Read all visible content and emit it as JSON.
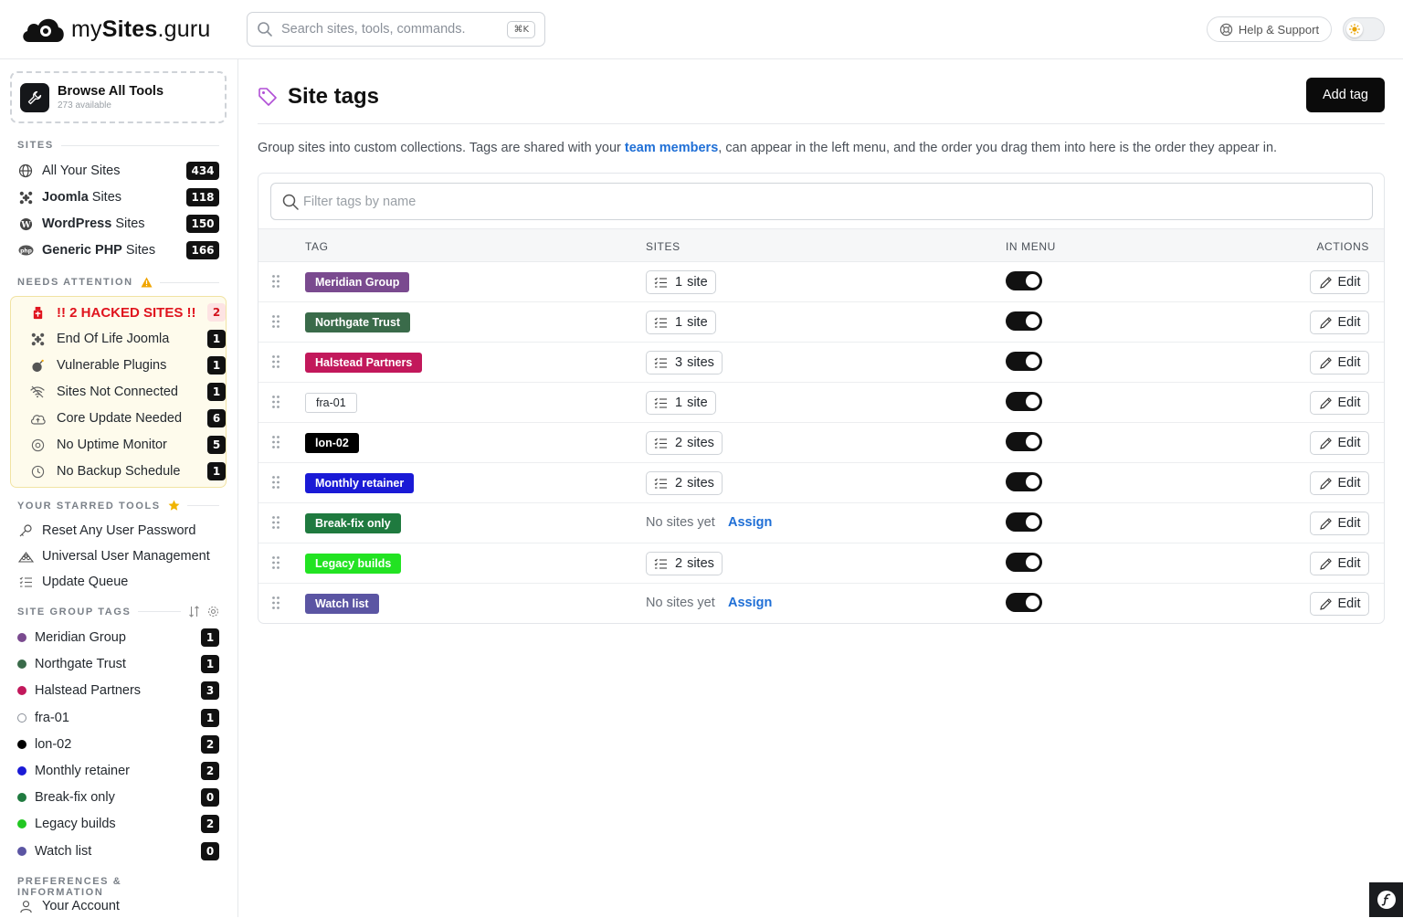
{
  "header": {
    "logo_prefix": "my",
    "logo_bold": "Sites",
    "logo_suffix": ".guru",
    "search_placeholder": "Search sites, tools, commands.",
    "search_shortcut": "⌘K",
    "help_label": "Help & Support"
  },
  "sidebar": {
    "browse": {
      "title": "Browse All Tools",
      "subtitle": "273 available"
    },
    "sites_title": "SITES",
    "sites": [
      {
        "bold": "",
        "label": "All Your Sites",
        "count": "434",
        "icon": "globe-icon"
      },
      {
        "bold": "Joomla",
        "label": " Sites",
        "count": "118",
        "icon": "joomla-icon"
      },
      {
        "bold": "WordPress",
        "label": " Sites",
        "count": "150",
        "icon": "wordpress-icon"
      },
      {
        "bold": "Generic PHP",
        "label": " Sites",
        "count": "166",
        "icon": "php-icon"
      }
    ],
    "attention_title": "NEEDS ATTENTION",
    "attention": [
      {
        "label": "!! 2 HACKED SITES !!",
        "count": "2"
      },
      {
        "label": "End Of Life Joomla",
        "count": "1"
      },
      {
        "label": "Vulnerable Plugins",
        "count": "1"
      },
      {
        "label": "Sites Not Connected",
        "count": "1"
      },
      {
        "label": "Core Update Needed",
        "count": "6"
      },
      {
        "label": "No Uptime Monitor",
        "count": "5"
      },
      {
        "label": "No Backup Schedule",
        "count": "1"
      }
    ],
    "starred_title": "YOUR STARRED TOOLS",
    "starred": [
      {
        "label": "Reset Any User Password"
      },
      {
        "label": "Universal User Management"
      },
      {
        "label": "Update Queue"
      }
    ],
    "tags_title": "SITE GROUP TAGS",
    "tags": [
      {
        "label": "Meridian Group",
        "count": "1",
        "color": "#7a4a8f"
      },
      {
        "label": "Northgate Trust",
        "count": "1",
        "color": "#3a6b4a"
      },
      {
        "label": "Halstead Partners",
        "count": "3",
        "color": "#c2185b"
      },
      {
        "label": "fra-01",
        "count": "1",
        "color": "#ffffff"
      },
      {
        "label": "lon-02",
        "count": "2",
        "color": "#000000"
      },
      {
        "label": "Monthly retainer",
        "count": "2",
        "color": "#1a1ad6"
      },
      {
        "label": "Break-fix only",
        "count": "0",
        "color": "#1f7a3f"
      },
      {
        "label": "Legacy builds",
        "count": "2",
        "color": "#22c722"
      },
      {
        "label": "Watch list",
        "count": "0",
        "color": "#5b55a3"
      }
    ],
    "prefs_title": "PREFERENCES & INFORMATION",
    "prefs": [
      {
        "label": "Your Account"
      }
    ]
  },
  "main": {
    "title": "Site tags",
    "add_button": "Add tag",
    "desc_pre": "Group sites into custom collections. Tags are shared with your ",
    "desc_link": "team members",
    "desc_post": ", can appear in the left menu, and the order you drag them into here is the order they appear in.",
    "filter_placeholder": "Filter tags by name",
    "columns": {
      "tag": "TAG",
      "sites": "SITES",
      "menu": "IN MENU",
      "actions": "ACTIONS"
    },
    "edit_label": "Edit",
    "no_sites": "No sites yet",
    "assign_label": "Assign",
    "rows": [
      {
        "tag": "Meridian Group",
        "bg": "#7a4a8f",
        "outline": false,
        "count": "1",
        "unit": "site",
        "in_menu": true
      },
      {
        "tag": "Northgate Trust",
        "bg": "#3a6b4a",
        "outline": false,
        "count": "1",
        "unit": "site",
        "in_menu": true
      },
      {
        "tag": "Halstead Partners",
        "bg": "#c2185b",
        "outline": false,
        "count": "3",
        "unit": "sites",
        "in_menu": true
      },
      {
        "tag": "fra-01",
        "bg": "#ffffff",
        "outline": true,
        "count": "1",
        "unit": "site",
        "in_menu": true
      },
      {
        "tag": "lon-02",
        "bg": "#000000",
        "outline": false,
        "count": "2",
        "unit": "sites",
        "in_menu": true
      },
      {
        "tag": "Monthly retainer",
        "bg": "#1a1ad6",
        "outline": false,
        "count": "2",
        "unit": "sites",
        "in_menu": true
      },
      {
        "tag": "Break-fix only",
        "bg": "#1f7a3f",
        "outline": false,
        "count": "",
        "unit": "",
        "in_menu": true
      },
      {
        "tag": "Legacy builds",
        "bg": "#22e322",
        "outline": false,
        "count": "2",
        "unit": "sites",
        "in_menu": true
      },
      {
        "tag": "Watch list",
        "bg": "#5b55a3",
        "outline": false,
        "count": "",
        "unit": "",
        "in_menu": true
      }
    ]
  }
}
